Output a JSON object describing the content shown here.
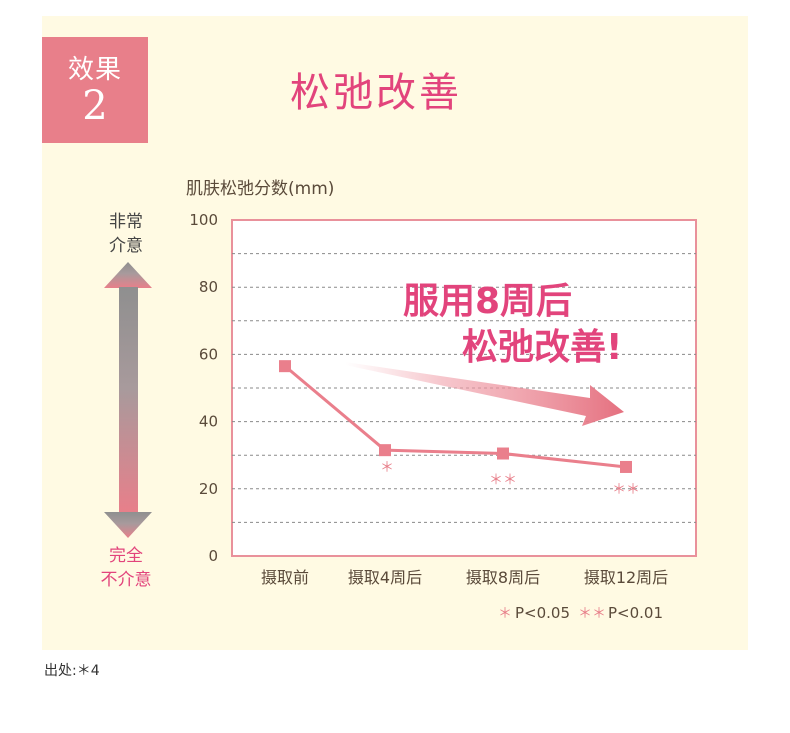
{
  "badge": {
    "label": "效果",
    "number": "2"
  },
  "title": "松弛改善",
  "axis_title": "肌肤松弛分数(mm)",
  "side": {
    "top": [
      "非常",
      "介意"
    ],
    "bottom": [
      "完全",
      "不介意"
    ]
  },
  "annotation": {
    "line1": "服用8周后",
    "line2": "松弛改善!"
  },
  "legend": {
    "single_star": "＊",
    "single_text": "P<0.05",
    "double_star": "＊＊",
    "double_text": "P<0.01"
  },
  "source": "出处:＊4",
  "colors": {
    "accent": "#e2447c",
    "badge": "#e87f8a",
    "line": "#ea7f8c",
    "panel": "#fffae3",
    "frame": "#e9919b"
  },
  "chart_data": {
    "type": "line",
    "title": "",
    "ylabel": "肌肤松弛分数(mm)",
    "xlabel": "",
    "categories": [
      "摄取前",
      "摄取4周后",
      "摄取8周后",
      "摄取12周后"
    ],
    "values": [
      56.5,
      31.5,
      30.5,
      26.5
    ],
    "significance": [
      "",
      "＊",
      "＊＊",
      "＊＊"
    ],
    "ylim": [
      0,
      100
    ],
    "yticks": [
      0,
      20,
      40,
      60,
      80,
      100
    ],
    "grid": true
  }
}
